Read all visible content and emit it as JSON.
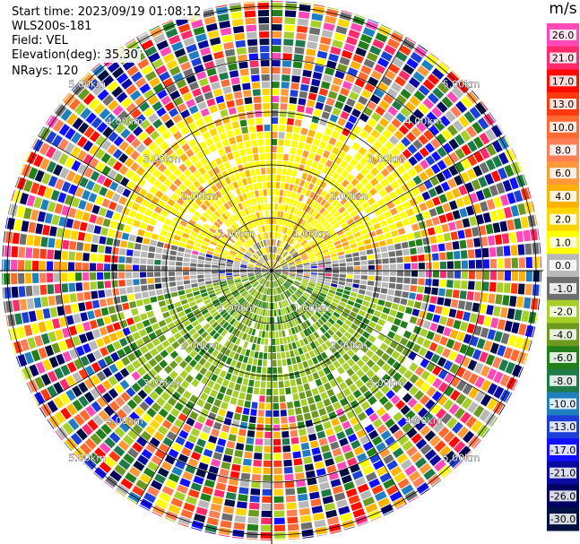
{
  "info": {
    "start_time": "Start time: 2023/09/19 01:08:12",
    "site": "WLS200s-181",
    "field": "Field: VEL",
    "elevation": "Elevation(deg): 35.30",
    "nrays": "NRays: 120"
  },
  "colorbar": {
    "unit": "m/s",
    "ticks": [
      "26.0",
      "21.0",
      "17.0",
      "13.0",
      "10.0",
      "8.0",
      "6.0",
      "4.0",
      "2.0",
      "1.0",
      "0.0",
      "-1.0",
      "-2.0",
      "-4.0",
      "-6.0",
      "-8.0",
      "-10.0",
      "-13.0",
      "-17.0",
      "-21.0",
      "-26.0",
      "-30.0"
    ],
    "colors": [
      "#ff49b6",
      "#ff2a6b",
      "#ff0a00",
      "#ff3a0f",
      "#ff6a30",
      "#ff7f56",
      "#ff9838",
      "#ffb200",
      "#ffd400",
      "#ffff00",
      "#b8b8b8",
      "#6e6e6e",
      "#a6cf2a",
      "#6c9a1f",
      "#237f1a",
      "#1f7a4a",
      "#1f7fbf",
      "#1c3fd8",
      "#1010ff",
      "#0a0aa0",
      "#000060",
      "#001040"
    ]
  },
  "chart_data": {
    "type": "ppi",
    "field": "VEL",
    "units": "m/s",
    "nrays": 120,
    "range_rings_km": [
      1.0,
      2.0,
      3.0,
      4.0,
      5.0
    ],
    "ring_labels": [
      "1.00km",
      "2.00km",
      "3.00km",
      "4.00km",
      "5.00km"
    ],
    "vmin": -30.0,
    "vmax": 26.0,
    "max_range_km": 5.1,
    "features": [
      {
        "region": "north sector, near range",
        "value_range_m_s": [
          1.0,
          6.0
        ]
      },
      {
        "region": "south sector, near range",
        "value_range_m_s": [
          -8.0,
          -1.0
        ]
      },
      {
        "region": "east-west band",
        "value_range_m_s": [
          -1.0,
          1.0
        ]
      },
      {
        "region": "outer ranges (noise)",
        "value_range_m_s": [
          -30.0,
          26.0
        ]
      }
    ]
  }
}
